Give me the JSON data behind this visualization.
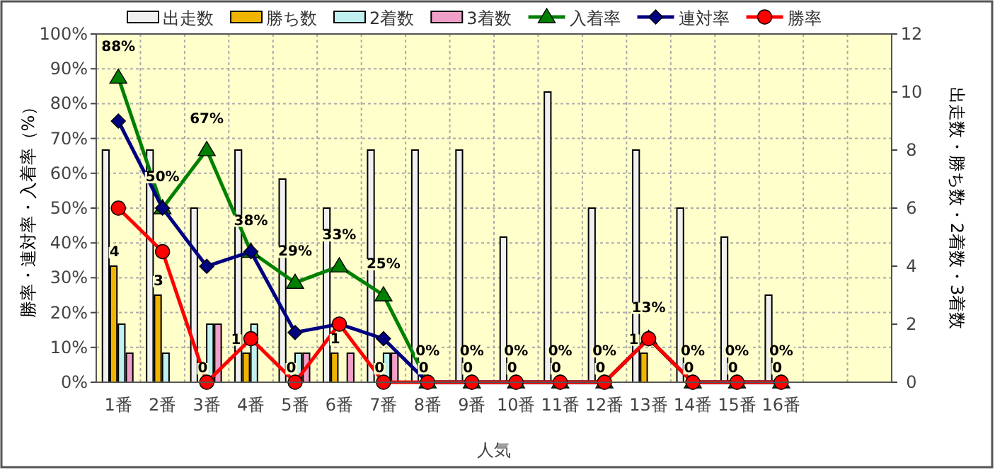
{
  "chart_data": {
    "type": "bar",
    "xlabel": "人気",
    "ylabel": "勝率・連対率・入着率（%）",
    "y2label": "出走数・勝ち数・2着数・3着数",
    "categories": [
      "1番",
      "2番",
      "3番",
      "4番",
      "5番",
      "6番",
      "7番",
      "8番",
      "9番",
      "10番",
      "11番",
      "12番",
      "13番",
      "14番",
      "15番",
      "16番",
      null,
      null
    ],
    "ylim": [
      0,
      100
    ],
    "yticks": [
      {
        "value": 0,
        "label": "0%"
      },
      {
        "value": 10,
        "label": "10%"
      },
      {
        "value": 20,
        "label": "20%"
      },
      {
        "value": 30,
        "label": "30%"
      },
      {
        "value": 40,
        "label": "40%"
      },
      {
        "value": 50,
        "label": "50%"
      },
      {
        "value": 60,
        "label": "60%"
      },
      {
        "value": 70,
        "label": "70%"
      },
      {
        "value": 80,
        "label": "80%"
      },
      {
        "value": 90,
        "label": "90%"
      },
      {
        "value": 100,
        "label": "100%"
      }
    ],
    "y2lim": [
      0,
      12
    ],
    "y2ticks": [
      0,
      2,
      4,
      6,
      8,
      10,
      12
    ],
    "grid": true,
    "legend": "top",
    "series": [
      {
        "name": "出走数",
        "type": "bar",
        "axis": "y2",
        "color": "#f0f0f0",
        "values": [
          8,
          8,
          6,
          8,
          7,
          6,
          8,
          8,
          8,
          5,
          10,
          6,
          8,
          6,
          5,
          3,
          null,
          null
        ]
      },
      {
        "name": "勝ち数",
        "type": "bar",
        "axis": "y2",
        "color": "#f0b400",
        "values": [
          4,
          3,
          0,
          1,
          0,
          1,
          0,
          0,
          0,
          0,
          0,
          0,
          1,
          0,
          0,
          0,
          null,
          null
        ],
        "value_labels": [
          "4",
          "3",
          "0",
          "1",
          "0",
          "1",
          "0",
          "0",
          "0",
          "0",
          "0",
          "0",
          "1",
          "0",
          "0",
          "0",
          null,
          null
        ]
      },
      {
        "name": "2着数",
        "type": "bar",
        "axis": "y2",
        "color": "#c0f0f0",
        "values": [
          2,
          1,
          2,
          2,
          1,
          0,
          1,
          0,
          0,
          0,
          0,
          0,
          0,
          0,
          0,
          0,
          null,
          null
        ]
      },
      {
        "name": "3着数",
        "type": "bar",
        "axis": "y2",
        "color": "#f0a0c8",
        "values": [
          1,
          0,
          2,
          0,
          1,
          1,
          1,
          0,
          0,
          0,
          0,
          0,
          0,
          0,
          0,
          0,
          null,
          null
        ]
      },
      {
        "name": "入着率",
        "type": "line",
        "marker": "triangle",
        "color": "#008000",
        "values": [
          87.5,
          50,
          66.7,
          37.5,
          28.6,
          33.3,
          25,
          0,
          0,
          0,
          0,
          0,
          12.5,
          0,
          0,
          0,
          null,
          null
        ],
        "value_labels": [
          "88%",
          "50%",
          "67%",
          "38%",
          "29%",
          "33%",
          "25%",
          "0%",
          "0%",
          "0%",
          "0%",
          "0%",
          "13%",
          "0%",
          "0%",
          "0%",
          null,
          null
        ]
      },
      {
        "name": "連対率",
        "type": "line",
        "marker": "diamond",
        "color": "#000080",
        "values": [
          75,
          50,
          33.3,
          37.5,
          14.3,
          16.7,
          12.5,
          0,
          0,
          0,
          0,
          0,
          12.5,
          0,
          0,
          0,
          null,
          null
        ]
      },
      {
        "name": "勝率",
        "type": "line",
        "marker": "circle",
        "color": "#ff0000",
        "values": [
          50,
          37.5,
          0,
          12.5,
          0,
          16.7,
          0,
          0,
          0,
          0,
          0,
          0,
          12.5,
          0,
          0,
          0,
          null,
          null
        ]
      }
    ]
  }
}
